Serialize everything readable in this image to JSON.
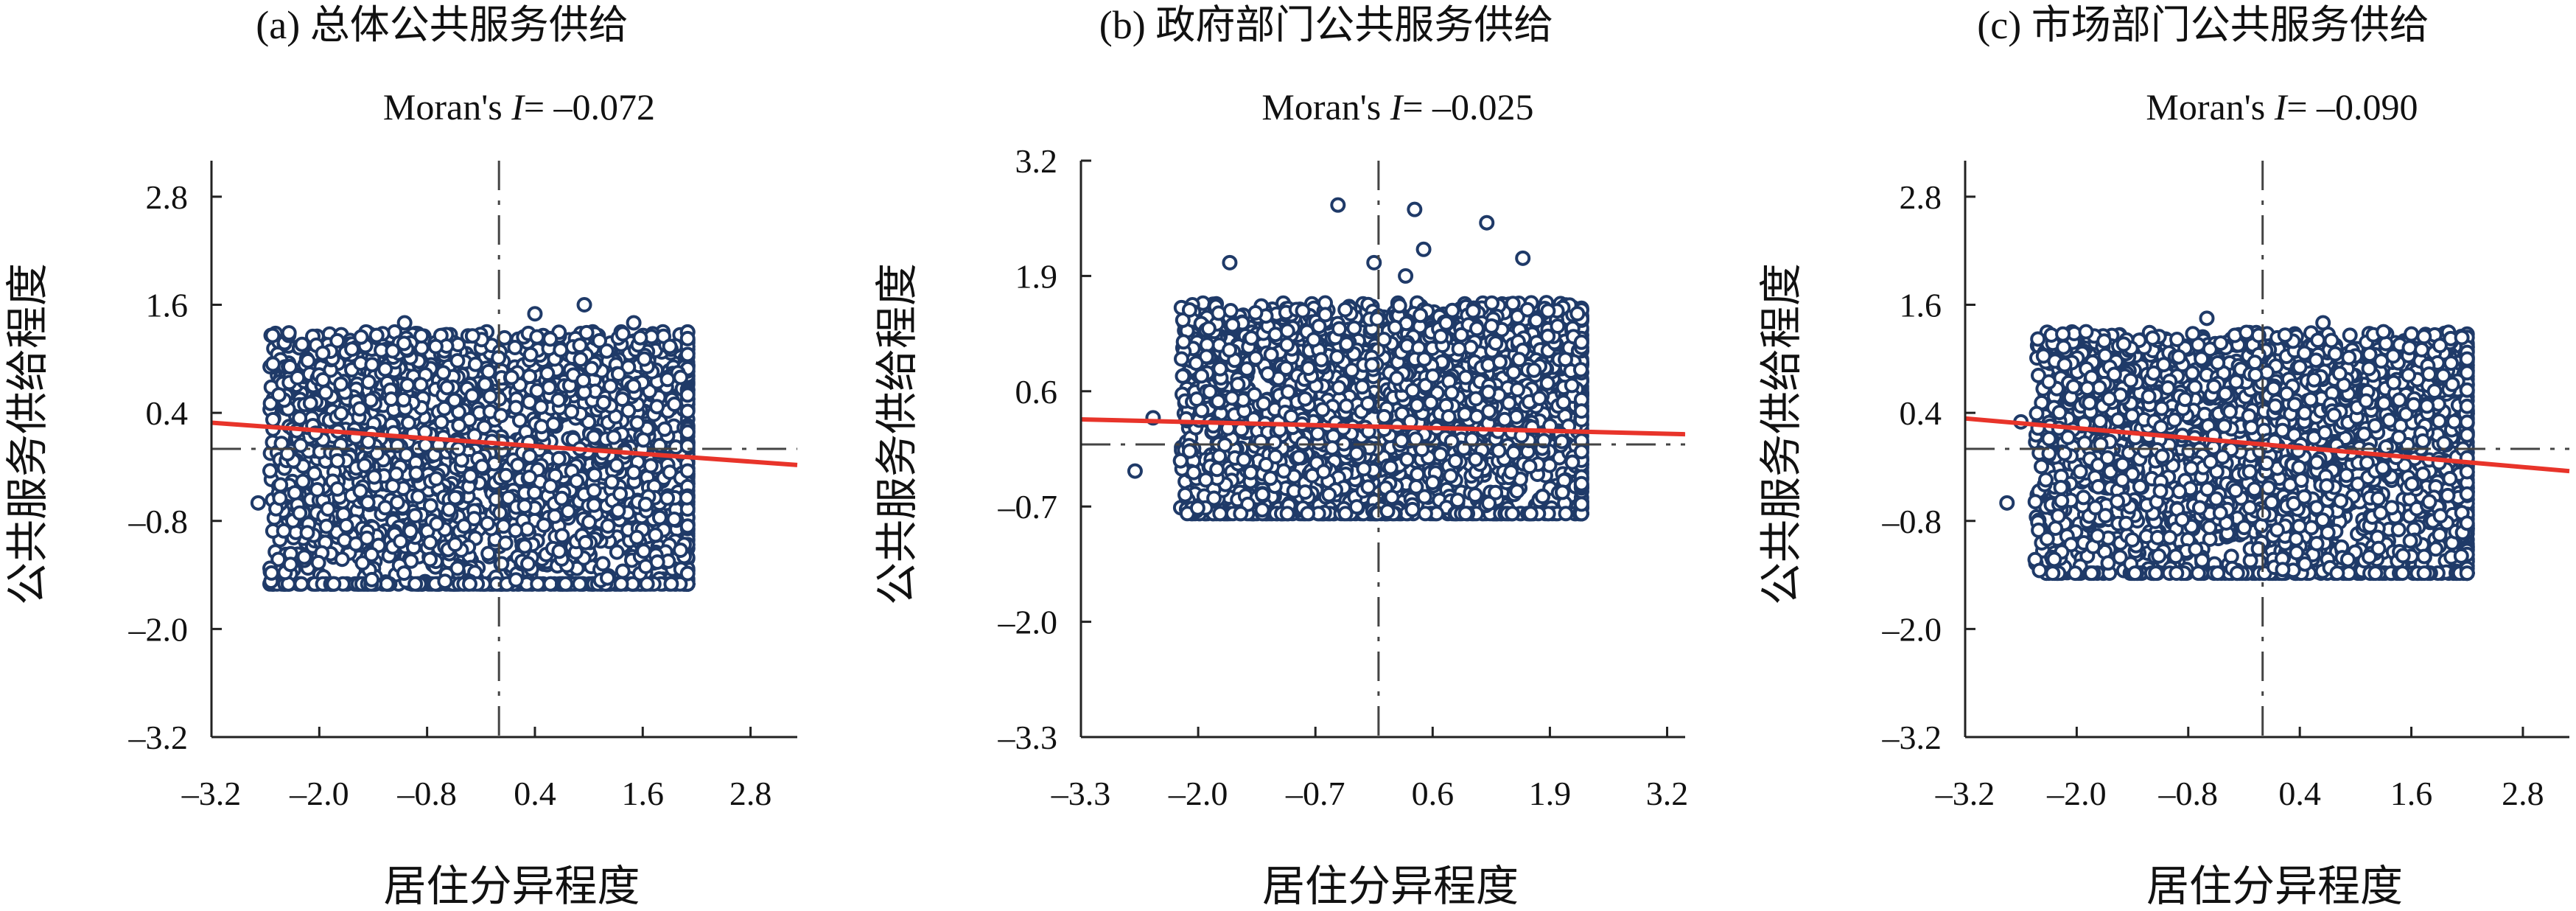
{
  "chart_data": [
    {
      "type": "scatter",
      "title": "(a) 总体公共服务供给",
      "subtitle_prefix": "Moran's ",
      "subtitle_italic": "I",
      "subtitle_suffix": "= –0.072",
      "xlabel": "居住分异程度",
      "ylabel": "公共服务供给程度",
      "x_ticks": [
        -3.2,
        -2.0,
        -0.8,
        0.4,
        1.6,
        2.8
      ],
      "x_tick_labels": [
        "–3.2",
        "–2.0",
        "–0.8",
        "0.4",
        "1.6",
        "2.8"
      ],
      "y_ticks": [
        2.8,
        1.6,
        0.4,
        -0.8,
        -2.0,
        -3.2
      ],
      "y_tick_labels": [
        "2.8",
        "1.6",
        "0.4",
        "–0.8",
        "–2.0",
        "–3.2"
      ],
      "xlim": [
        -3.2,
        3.32
      ],
      "ylim": [
        -3.2,
        3.2
      ],
      "mean_x": 0.0,
      "mean_y": 0.0,
      "slope": -0.072,
      "intercept": 0.06,
      "fit_color": "#e8342a",
      "point_color": "#1f3a68",
      "cluster": {
        "x_min": -2.55,
        "x_max": 2.1,
        "y_min": -1.5,
        "y_max": 1.3
      },
      "outliers": [
        [
          -2.68,
          -0.6
        ],
        [
          -2.45,
          0.6
        ],
        [
          -2.25,
          0.2
        ],
        [
          -1.05,
          1.4
        ],
        [
          0.4,
          1.5
        ],
        [
          0.95,
          1.6
        ],
        [
          -2.2,
          -1.5
        ],
        [
          -1.8,
          1.2
        ],
        [
          1.5,
          1.4
        ]
      ]
    },
    {
      "type": "scatter",
      "title": "(b) 政府部门公共服务供给",
      "subtitle_prefix": "Moran's ",
      "subtitle_italic": "I",
      "subtitle_suffix": "= –0.025",
      "xlabel": "居住分异程度",
      "ylabel": "公共服务供给程度",
      "x_ticks": [
        -3.3,
        -2.0,
        -0.7,
        0.6,
        1.9,
        3.2
      ],
      "x_tick_labels": [
        "–3.3",
        "–2.0",
        "–0.7",
        "0.6",
        "1.9",
        "3.2"
      ],
      "y_ticks": [
        3.2,
        1.9,
        0.6,
        -0.7,
        -2.0,
        -3.3
      ],
      "y_tick_labels": [
        "3.2",
        "1.9",
        "0.6",
        "–0.7",
        "–2.0",
        "–3.3"
      ],
      "xlim": [
        -3.3,
        3.4
      ],
      "ylim": [
        -3.3,
        3.2
      ],
      "mean_x": 0.0,
      "mean_y": 0.0,
      "slope": -0.025,
      "intercept": 0.2,
      "fit_color": "#e8342a",
      "point_color": "#1f3a68",
      "cluster": {
        "x_min": -2.2,
        "x_max": 2.25,
        "y_min": -0.78,
        "y_max": 1.6
      },
      "outliers": [
        [
          -2.7,
          -0.3
        ],
        [
          -2.5,
          0.3
        ],
        [
          -1.65,
          2.05
        ],
        [
          -0.45,
          2.7
        ],
        [
          0.4,
          2.65
        ],
        [
          0.5,
          2.2
        ],
        [
          1.2,
          2.5
        ],
        [
          1.6,
          2.1
        ],
        [
          0.3,
          1.9
        ],
        [
          -0.05,
          2.05
        ]
      ]
    },
    {
      "type": "scatter",
      "title": "(c) 市场部门公共服务供给",
      "subtitle_prefix": "Moran's ",
      "subtitle_italic": "I",
      "subtitle_suffix": "= –0.090",
      "xlabel": "居住分异程度",
      "ylabel": "公共服务供给程度",
      "x_ticks": [
        -3.2,
        -2.0,
        -0.8,
        0.4,
        1.6,
        2.8
      ],
      "x_tick_labels": [
        "–3.2",
        "–2.0",
        "–0.8",
        "0.4",
        "1.6",
        "2.8"
      ],
      "y_ticks": [
        2.8,
        1.6,
        0.4,
        -0.8,
        -2.0,
        -3.2
      ],
      "y_tick_labels": [
        "2.8",
        "1.6",
        "0.4",
        "–0.8",
        "–2.0",
        "–3.2"
      ],
      "xlim": [
        -3.2,
        3.3
      ],
      "ylim": [
        -3.2,
        3.2
      ],
      "mean_x": 0.0,
      "mean_y": 0.0,
      "slope": -0.09,
      "intercept": 0.05,
      "fit_color": "#e8342a",
      "point_color": "#1f3a68",
      "cluster": {
        "x_min": -2.45,
        "x_max": 2.2,
        "y_min": -1.38,
        "y_max": 1.3
      },
      "outliers": [
        [
          -2.75,
          -0.6
        ],
        [
          -2.6,
          0.3
        ],
        [
          -2.4,
          -1.35
        ],
        [
          -1.9,
          1.3
        ],
        [
          -0.6,
          1.45
        ],
        [
          0.65,
          1.4
        ],
        [
          1.3,
          1.3
        ]
      ]
    }
  ]
}
